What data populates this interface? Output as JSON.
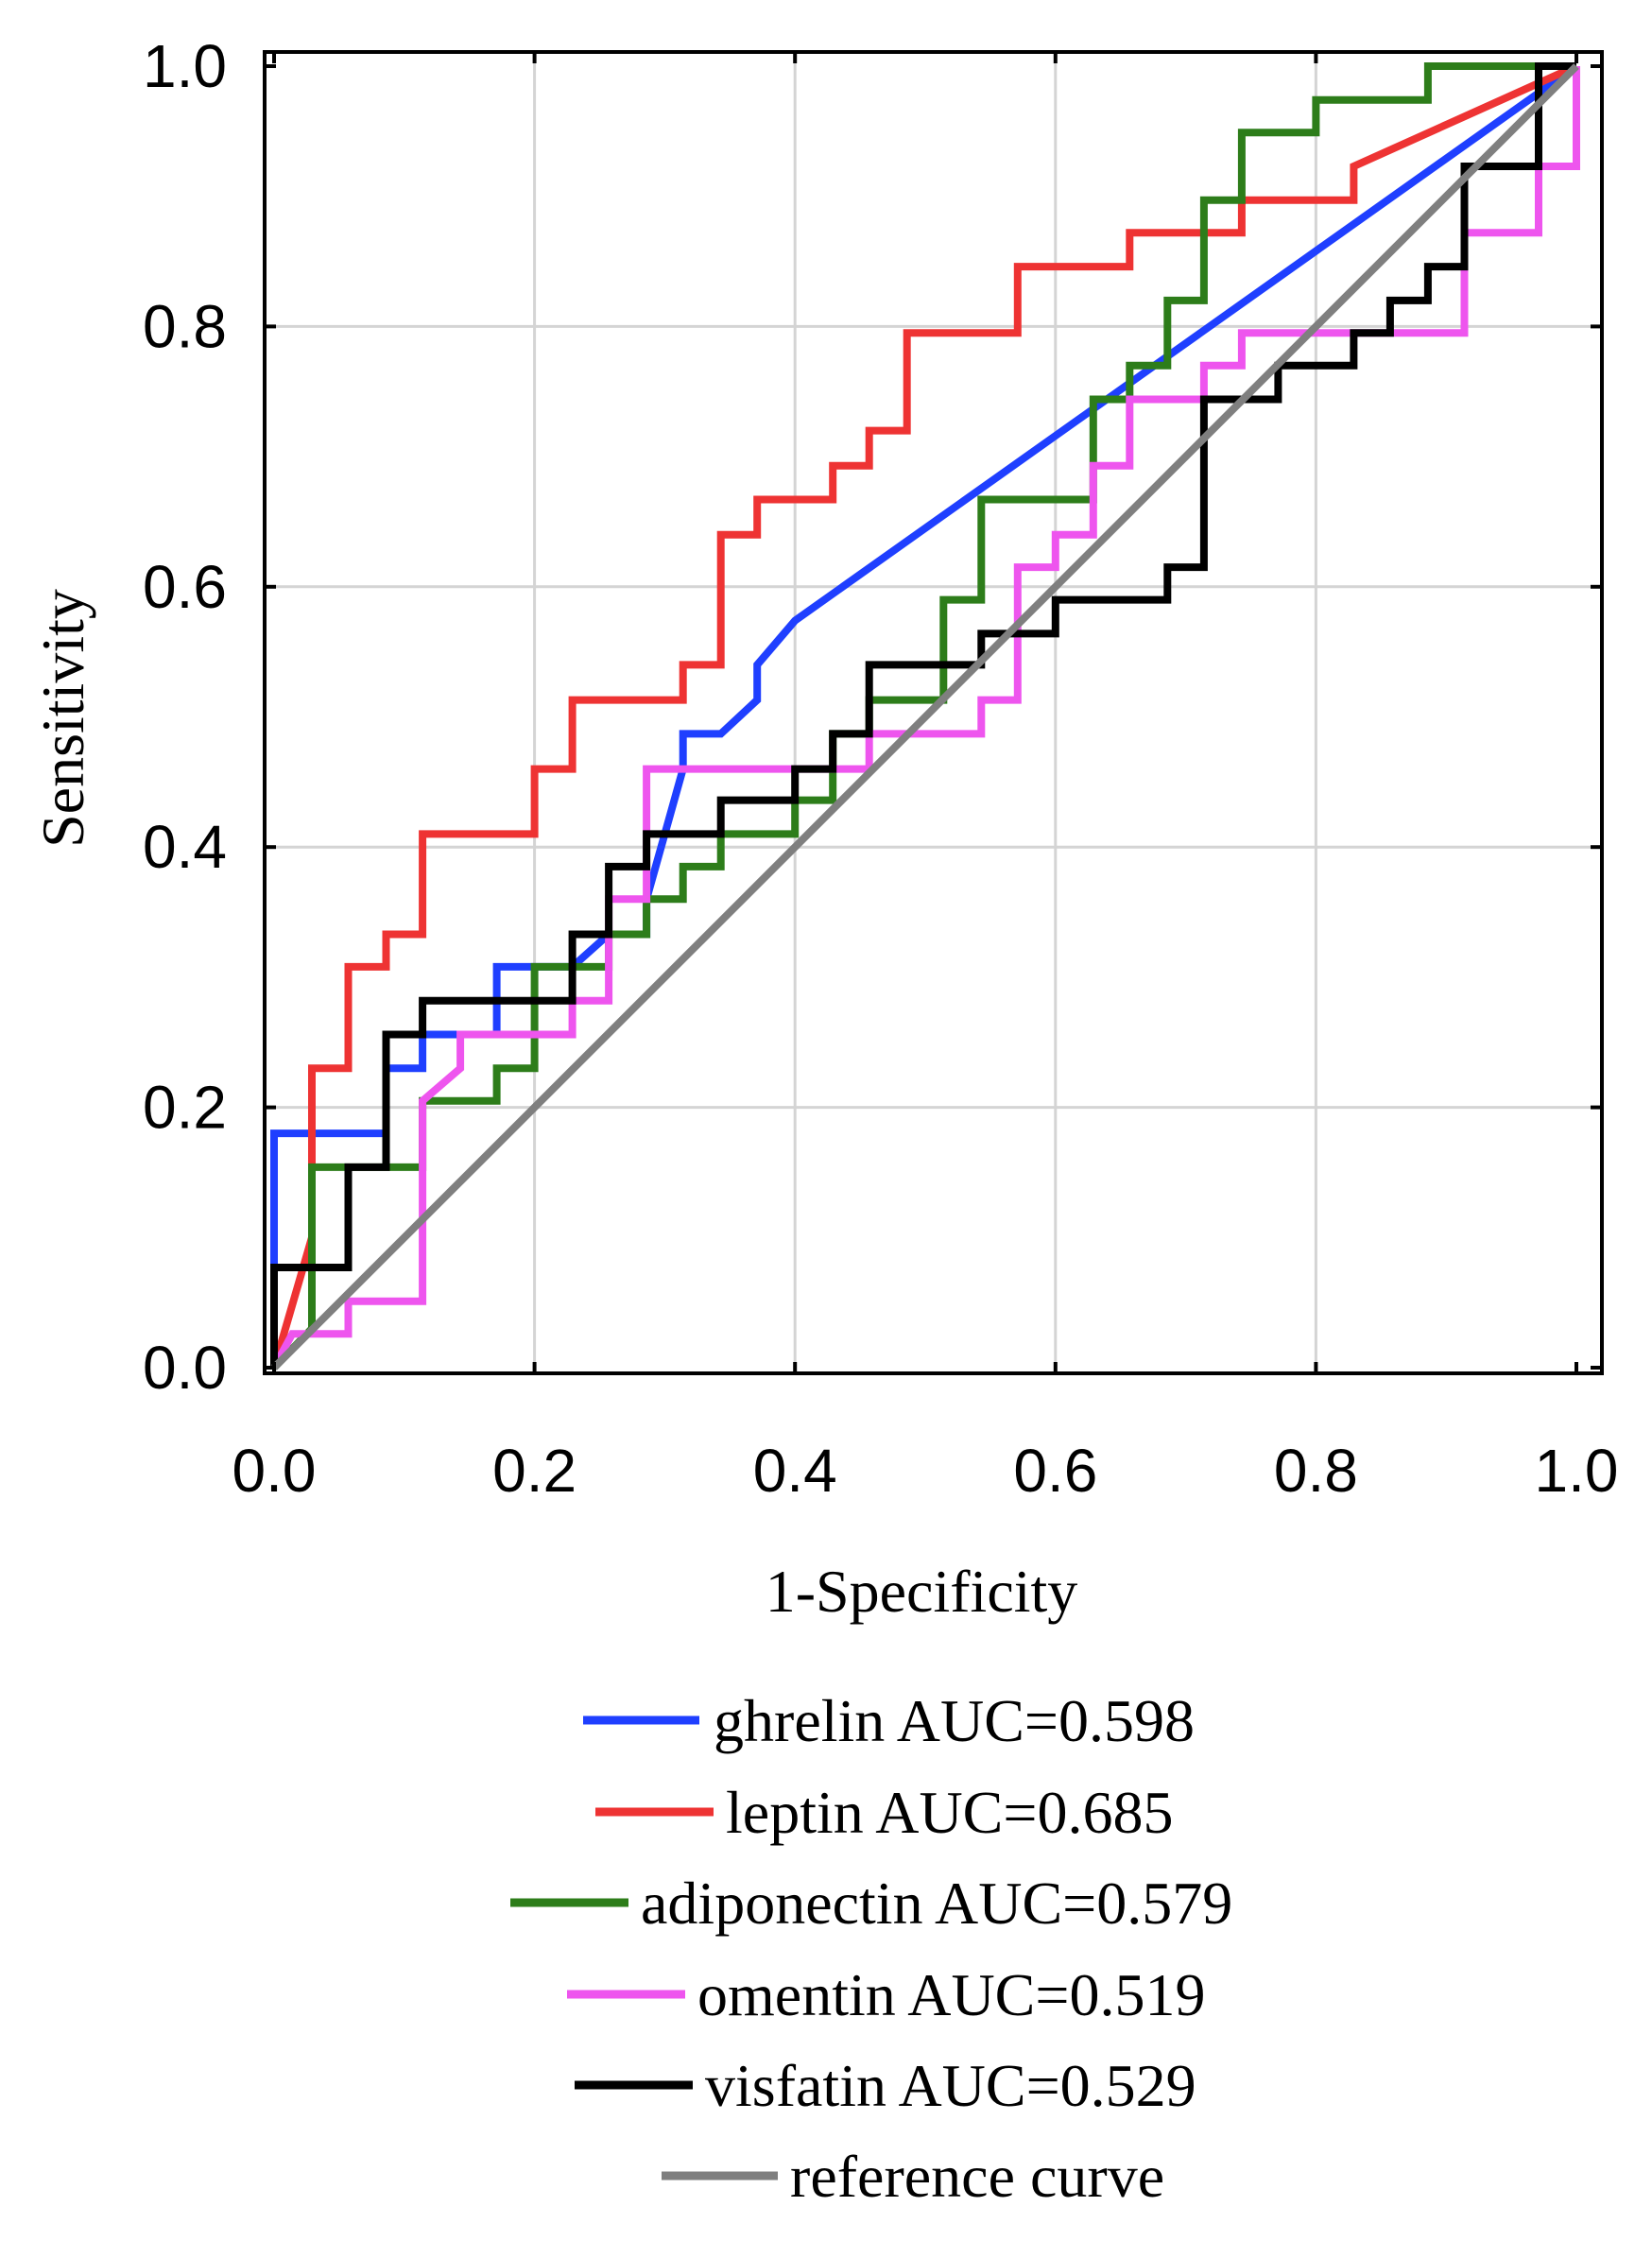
{
  "chart_data": {
    "type": "line",
    "title": "",
    "xlabel": "1-Specificity",
    "ylabel": "Sensitivity",
    "xlim": [
      0,
      1
    ],
    "ylim": [
      0,
      1
    ],
    "grid": true,
    "x_ticks": [
      "0.0",
      "0.2",
      "0.4",
      "0.6",
      "0.8",
      "1.0"
    ],
    "y_ticks": [
      "0.0",
      "0.2",
      "0.4",
      "0.6",
      "0.8",
      "1.0"
    ],
    "legend_position": "bottom",
    "series": [
      {
        "name": "ghrelin",
        "legend_label": "ghrelin  AUC=0.598",
        "color": "#1f3fff",
        "points": [
          [
            0,
            0
          ],
          [
            0,
            0.18
          ],
          [
            0.086,
            0.18
          ],
          [
            0.086,
            0.23
          ],
          [
            0.114,
            0.23
          ],
          [
            0.114,
            0.256
          ],
          [
            0.171,
            0.256
          ],
          [
            0.171,
            0.308
          ],
          [
            0.229,
            0.308
          ],
          [
            0.257,
            0.333
          ],
          [
            0.286,
            0.333
          ],
          [
            0.286,
            0.36
          ],
          [
            0.314,
            0.46
          ],
          [
            0.314,
            0.487
          ],
          [
            0.343,
            0.487
          ],
          [
            0.371,
            0.513
          ],
          [
            0.371,
            0.54
          ],
          [
            0.4,
            0.574
          ],
          [
            1,
            1
          ]
        ]
      },
      {
        "name": "leptin",
        "legend_label": "leptin  AUC=0.685",
        "color": "#ee3333",
        "points": [
          [
            0,
            0
          ],
          [
            0.029,
            0.1
          ],
          [
            0.029,
            0.23
          ],
          [
            0.057,
            0.23
          ],
          [
            0.057,
            0.308
          ],
          [
            0.086,
            0.308
          ],
          [
            0.086,
            0.333
          ],
          [
            0.114,
            0.333
          ],
          [
            0.114,
            0.41
          ],
          [
            0.2,
            0.41
          ],
          [
            0.2,
            0.46
          ],
          [
            0.229,
            0.46
          ],
          [
            0.229,
            0.513
          ],
          [
            0.314,
            0.513
          ],
          [
            0.314,
            0.54
          ],
          [
            0.343,
            0.54
          ],
          [
            0.343,
            0.64
          ],
          [
            0.371,
            0.64
          ],
          [
            0.371,
            0.667
          ],
          [
            0.429,
            0.667
          ],
          [
            0.429,
            0.693
          ],
          [
            0.457,
            0.693
          ],
          [
            0.457,
            0.72
          ],
          [
            0.486,
            0.72
          ],
          [
            0.486,
            0.795
          ],
          [
            0.571,
            0.795
          ],
          [
            0.571,
            0.846
          ],
          [
            0.657,
            0.846
          ],
          [
            0.657,
            0.872
          ],
          [
            0.743,
            0.872
          ],
          [
            0.743,
            0.897
          ],
          [
            0.829,
            0.897
          ],
          [
            0.829,
            0.923
          ],
          [
            1,
            1
          ]
        ]
      },
      {
        "name": "adiponectin",
        "legend_label": "adiponectin  AUC=0.579",
        "color": "#2d7d1a",
        "points": [
          [
            0,
            0
          ],
          [
            0.029,
            0.03
          ],
          [
            0.029,
            0.154
          ],
          [
            0.114,
            0.154
          ],
          [
            0.114,
            0.205
          ],
          [
            0.171,
            0.205
          ],
          [
            0.171,
            0.23
          ],
          [
            0.2,
            0.23
          ],
          [
            0.2,
            0.308
          ],
          [
            0.257,
            0.308
          ],
          [
            0.257,
            0.333
          ],
          [
            0.286,
            0.333
          ],
          [
            0.286,
            0.36
          ],
          [
            0.314,
            0.36
          ],
          [
            0.314,
            0.385
          ],
          [
            0.343,
            0.385
          ],
          [
            0.343,
            0.41
          ],
          [
            0.4,
            0.41
          ],
          [
            0.4,
            0.436
          ],
          [
            0.429,
            0.436
          ],
          [
            0.429,
            0.487
          ],
          [
            0.457,
            0.487
          ],
          [
            0.457,
            0.513
          ],
          [
            0.514,
            0.513
          ],
          [
            0.514,
            0.59
          ],
          [
            0.543,
            0.59
          ],
          [
            0.543,
            0.667
          ],
          [
            0.629,
            0.667
          ],
          [
            0.629,
            0.744
          ],
          [
            0.657,
            0.744
          ],
          [
            0.657,
            0.77
          ],
          [
            0.686,
            0.77
          ],
          [
            0.686,
            0.82
          ],
          [
            0.714,
            0.82
          ],
          [
            0.714,
            0.897
          ],
          [
            0.743,
            0.897
          ],
          [
            0.743,
            0.949
          ],
          [
            0.8,
            0.949
          ],
          [
            0.8,
            0.974
          ],
          [
            0.886,
            0.974
          ],
          [
            0.886,
            1
          ],
          [
            1,
            1
          ]
        ]
      },
      {
        "name": "omentin",
        "legend_label": "omentin  AUC=0.519",
        "color": "#ee55ee",
        "points": [
          [
            0,
            0
          ],
          [
            0.014,
            0.026
          ],
          [
            0.057,
            0.026
          ],
          [
            0.057,
            0.051
          ],
          [
            0.114,
            0.051
          ],
          [
            0.114,
            0.205
          ],
          [
            0.143,
            0.23
          ],
          [
            0.143,
            0.256
          ],
          [
            0.229,
            0.256
          ],
          [
            0.229,
            0.282
          ],
          [
            0.257,
            0.282
          ],
          [
            0.257,
            0.36
          ],
          [
            0.286,
            0.36
          ],
          [
            0.286,
            0.46
          ],
          [
            0.457,
            0.46
          ],
          [
            0.457,
            0.487
          ],
          [
            0.543,
            0.487
          ],
          [
            0.543,
            0.513
          ],
          [
            0.571,
            0.513
          ],
          [
            0.571,
            0.615
          ],
          [
            0.6,
            0.615
          ],
          [
            0.6,
            0.64
          ],
          [
            0.629,
            0.64
          ],
          [
            0.629,
            0.693
          ],
          [
            0.657,
            0.693
          ],
          [
            0.657,
            0.744
          ],
          [
            0.714,
            0.744
          ],
          [
            0.714,
            0.77
          ],
          [
            0.743,
            0.77
          ],
          [
            0.743,
            0.795
          ],
          [
            0.914,
            0.795
          ],
          [
            0.914,
            0.82
          ],
          [
            0.914,
            0.872
          ],
          [
            0.971,
            0.872
          ],
          [
            0.971,
            0.923
          ],
          [
            1,
            0.923
          ],
          [
            1,
            1
          ]
        ]
      },
      {
        "name": "visfatin",
        "legend_label": "visfatin  AUC=0.529",
        "color": "#000000",
        "points": [
          [
            0,
            0
          ],
          [
            0,
            0.077
          ],
          [
            0.057,
            0.077
          ],
          [
            0.057,
            0.154
          ],
          [
            0.086,
            0.154
          ],
          [
            0.086,
            0.256
          ],
          [
            0.114,
            0.256
          ],
          [
            0.114,
            0.282
          ],
          [
            0.229,
            0.282
          ],
          [
            0.229,
            0.333
          ],
          [
            0.257,
            0.333
          ],
          [
            0.257,
            0.385
          ],
          [
            0.286,
            0.385
          ],
          [
            0.286,
            0.41
          ],
          [
            0.343,
            0.41
          ],
          [
            0.343,
            0.436
          ],
          [
            0.4,
            0.436
          ],
          [
            0.4,
            0.46
          ],
          [
            0.429,
            0.46
          ],
          [
            0.429,
            0.487
          ],
          [
            0.457,
            0.487
          ],
          [
            0.457,
            0.54
          ],
          [
            0.543,
            0.54
          ],
          [
            0.543,
            0.564
          ],
          [
            0.571,
            0.564
          ],
          [
            0.571,
            0.564
          ],
          [
            0.6,
            0.564
          ],
          [
            0.6,
            0.59
          ],
          [
            0.686,
            0.59
          ],
          [
            0.686,
            0.615
          ],
          [
            0.714,
            0.615
          ],
          [
            0.714,
            0.744
          ],
          [
            0.771,
            0.744
          ],
          [
            0.771,
            0.77
          ],
          [
            0.829,
            0.77
          ],
          [
            0.829,
            0.795
          ],
          [
            0.857,
            0.795
          ],
          [
            0.857,
            0.82
          ],
          [
            0.886,
            0.82
          ],
          [
            0.886,
            0.846
          ],
          [
            0.914,
            0.846
          ],
          [
            0.914,
            0.923
          ],
          [
            0.971,
            0.923
          ],
          [
            0.971,
            1
          ],
          [
            1,
            1
          ]
        ]
      },
      {
        "name": "reference",
        "legend_label": "reference curve",
        "color": "#7f7f7f",
        "points": [
          [
            0,
            0
          ],
          [
            1,
            1
          ]
        ]
      }
    ]
  }
}
